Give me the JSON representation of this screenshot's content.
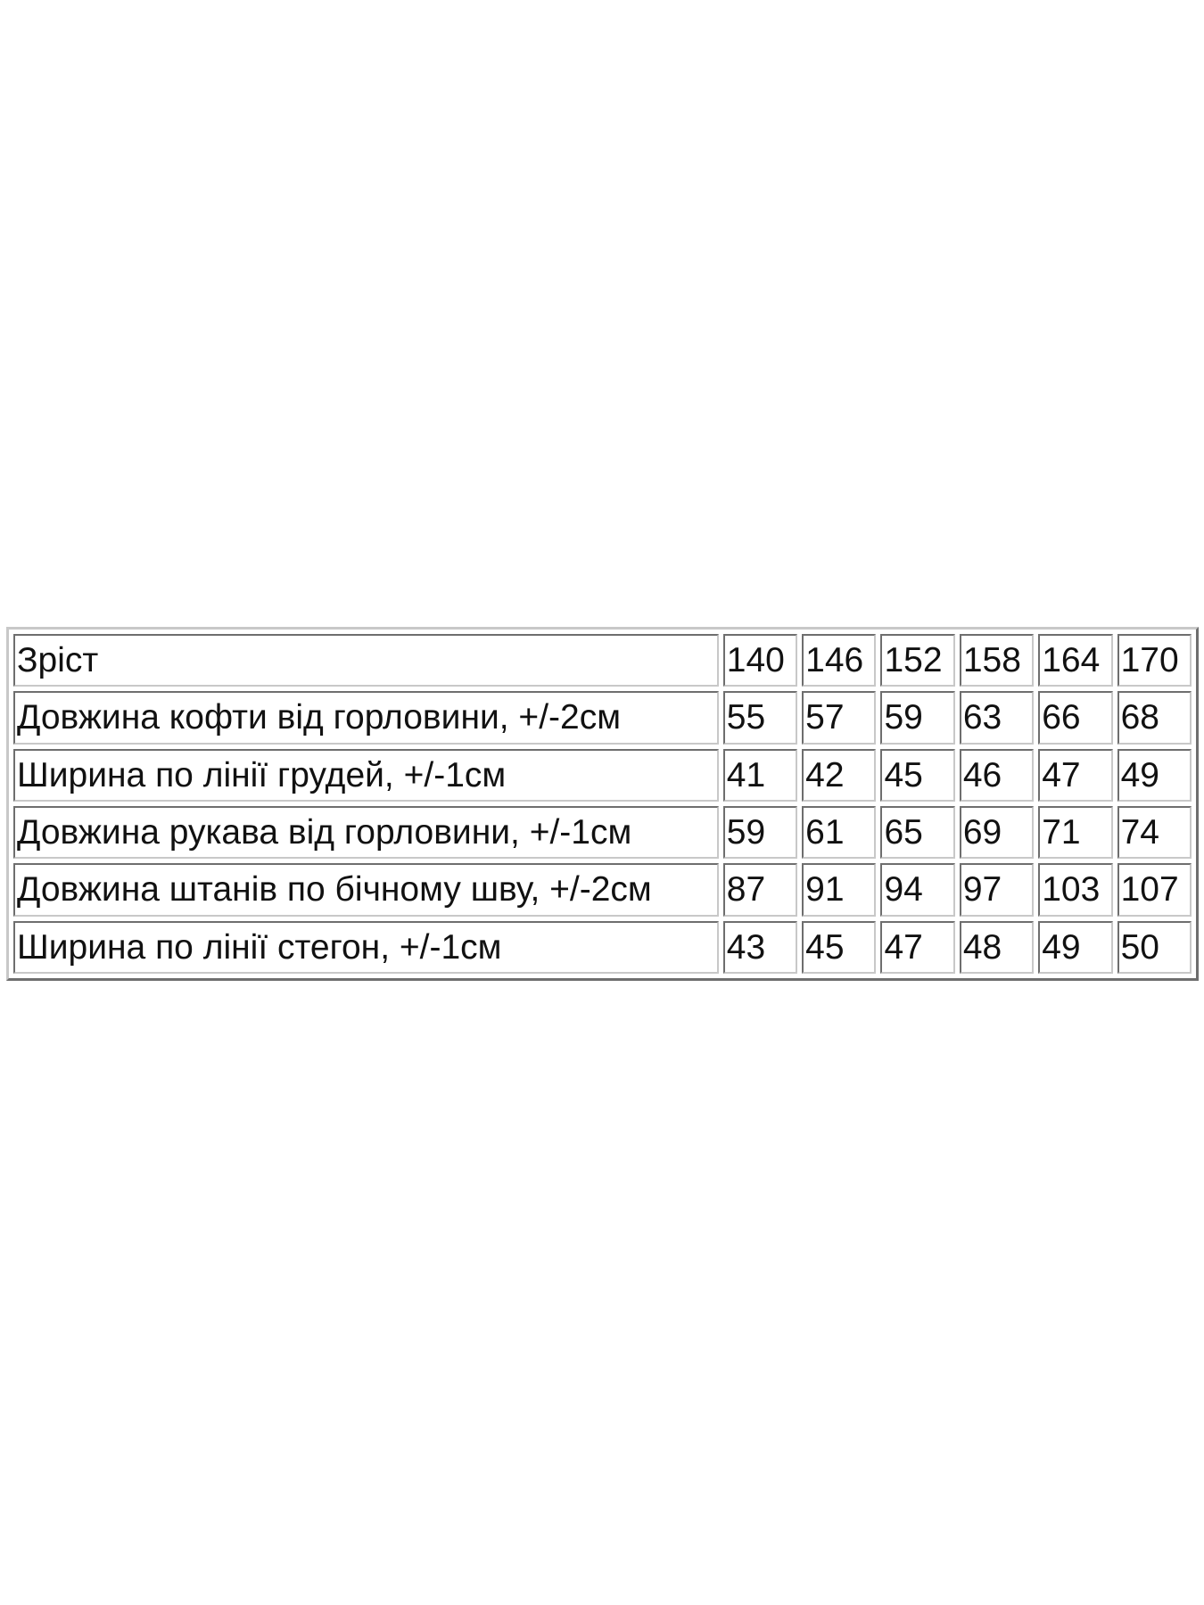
{
  "table": {
    "header": {
      "label": "Зріст",
      "values": [
        "140",
        "146",
        "152",
        "158",
        "164",
        "170"
      ]
    },
    "rows": [
      {
        "label": "Довжина кофти від горловини, +/-2см",
        "values": [
          "55",
          "57",
          "59",
          "63",
          "66",
          "68"
        ]
      },
      {
        "label": "Ширина по лінії грудей, +/-1см",
        "values": [
          "41",
          "42",
          "45",
          "46",
          "47",
          "49"
        ]
      },
      {
        "label": "Довжина рукава від горловини, +/-1см",
        "values": [
          "59",
          "61",
          "65",
          "69",
          "71",
          "74"
        ]
      },
      {
        "label": "Довжина штанів по бічному шву, +/-2см",
        "values": [
          "87",
          "91",
          "94",
          "97",
          "103",
          "107"
        ]
      },
      {
        "label": "Ширина по лінії стегон, +/-1см",
        "values": [
          "43",
          "45",
          "47",
          "48",
          "49",
          "50"
        ]
      }
    ]
  }
}
